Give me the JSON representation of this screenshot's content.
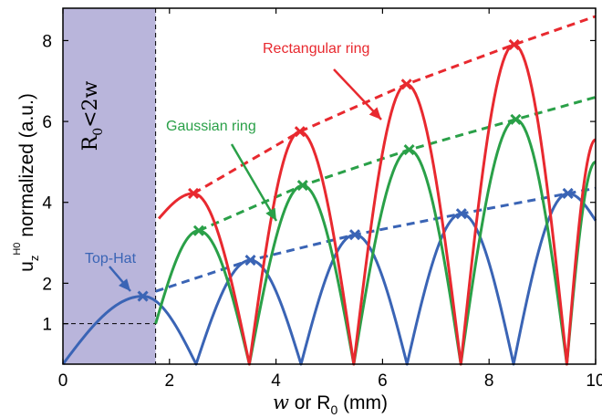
{
  "chart_data": {
    "type": "line",
    "xlabel_prefix": "w",
    "xlabel_rest": " or R",
    "xlabel_sub": "0",
    "xlabel_unit": " (mm)",
    "ylabel_main": "u",
    "ylabel_sub": "z",
    "ylabel_sup": "H0",
    "ylabel_rest": " normalized (a.u.)",
    "xlim": [
      0,
      10
    ],
    "ylim": [
      0,
      8.8
    ],
    "xticks": [
      0,
      2,
      4,
      6,
      8,
      10
    ],
    "yticks": [
      1,
      2,
      4,
      6,
      8
    ],
    "xtick_labels": [
      "0",
      "2",
      "4",
      "6",
      "8",
      "10"
    ],
    "ytick_labels": [
      "1",
      "2",
      "4",
      "6",
      "8"
    ],
    "grid": false,
    "shaded_region": {
      "x": [
        0,
        1.74
      ],
      "color": "#b9b5db",
      "label_R": "R",
      "label_sub": "0",
      "label_rest": "<2w"
    },
    "reference_line": {
      "y": 1,
      "x_end": 1.74
    },
    "colors": {
      "rect": "#e8292f",
      "gauss": "#2aa048",
      "tophat": "#3a64b5"
    },
    "annotations": {
      "rect": "Rectangular ring",
      "gauss": "Gaussian ring",
      "tophat": "Top-Hat"
    },
    "series": [
      {
        "key": "tophat",
        "name": "Top-Hat",
        "peaks": [
          [
            1.5,
            1.68
          ],
          [
            3.52,
            2.57
          ],
          [
            5.48,
            3.2
          ],
          [
            7.48,
            3.72
          ],
          [
            9.48,
            4.22
          ]
        ],
        "zeros": [
          2.5,
          4.47,
          6.46,
          8.46
        ]
      },
      {
        "key": "gauss",
        "name": "Gaussian ring",
        "start": [
          1.74,
          1.0
        ],
        "peaks": [
          [
            2.55,
            3.3
          ],
          [
            4.5,
            4.42
          ],
          [
            6.5,
            5.3
          ],
          [
            8.5,
            6.05
          ]
        ],
        "zeros": [
          3.5,
          5.46,
          7.47,
          9.46
        ],
        "end": [
          10,
          5.0
        ]
      },
      {
        "key": "rect",
        "name": "Rectangular ring",
        "start": [
          1.8,
          3.6
        ],
        "peaks": [
          [
            2.45,
            4.22
          ],
          [
            4.45,
            5.75
          ],
          [
            6.45,
            6.92
          ],
          [
            8.47,
            7.9
          ]
        ],
        "zeros": [
          3.5,
          5.46,
          7.47,
          9.46
        ],
        "end": [
          10,
          5.55
        ]
      }
    ],
    "envelopes": [
      {
        "key": "rect",
        "points": [
          [
            2.45,
            4.22
          ],
          [
            4.45,
            5.75
          ],
          [
            6.45,
            6.92
          ],
          [
            8.47,
            7.9
          ],
          [
            10,
            8.6
          ]
        ]
      },
      {
        "key": "gauss",
        "points": [
          [
            2.55,
            3.3
          ],
          [
            4.5,
            4.42
          ],
          [
            6.5,
            5.3
          ],
          [
            8.5,
            6.05
          ],
          [
            10,
            6.6
          ]
        ]
      },
      {
        "key": "tophat",
        "points": [
          [
            1.74,
            1.8
          ],
          [
            3.52,
            2.57
          ],
          [
            5.48,
            3.2
          ],
          [
            7.48,
            3.72
          ],
          [
            9.48,
            4.22
          ],
          [
            10,
            4.35
          ]
        ]
      }
    ]
  }
}
